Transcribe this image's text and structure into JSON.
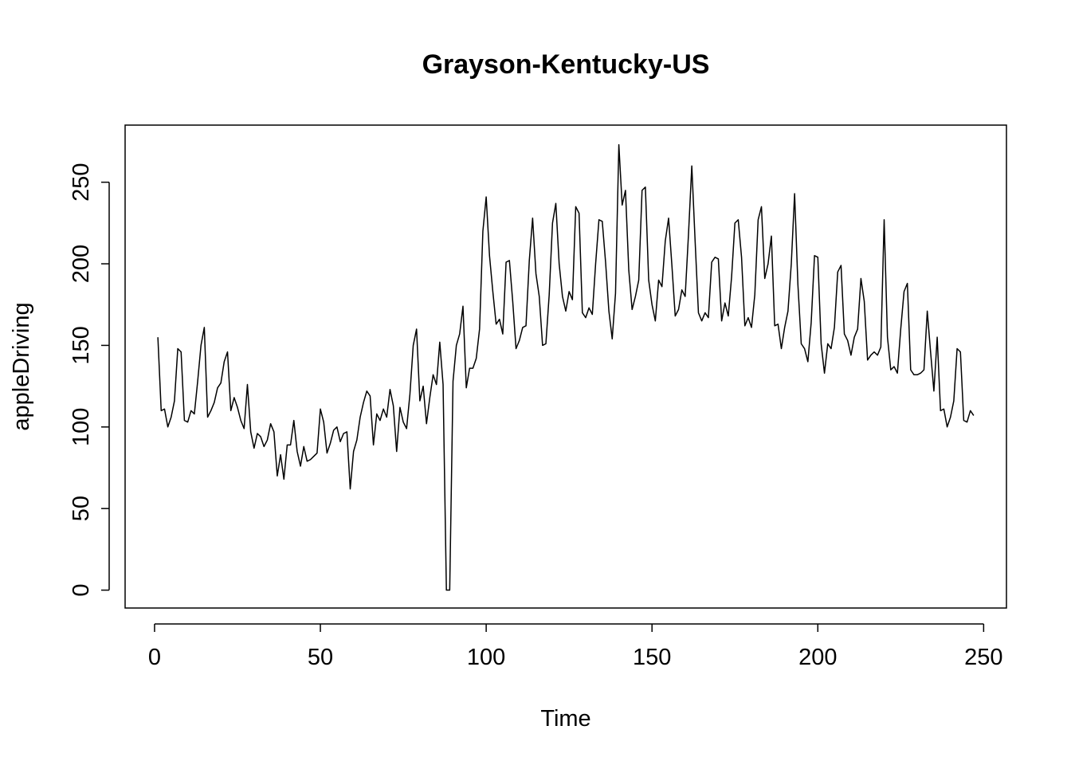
{
  "chart_data": {
    "type": "line",
    "title": "Grayson-Kentucky-US",
    "xlabel": "Time",
    "ylabel": "appleDriving",
    "xlim": [
      -8.88,
      256.88
    ],
    "ylim": [
      -10.96,
      285
    ],
    "x_ticks": [
      0,
      50,
      100,
      150,
      200,
      250
    ],
    "y_ticks": [
      0,
      50,
      100,
      150,
      200,
      250
    ],
    "x_tick_labels": [
      "0",
      "50",
      "100",
      "150",
      "200",
      "250"
    ],
    "y_tick_labels": [
      "0",
      "50",
      "100",
      "150",
      "200",
      "250"
    ],
    "grid": false,
    "legend": "none",
    "series": [
      {
        "color": "#000000",
        "x_start": 1,
        "values": [
          155,
          110,
          111,
          100,
          106,
          116,
          148,
          146,
          104,
          103,
          110,
          108,
          128,
          150,
          161,
          106,
          110,
          115,
          124,
          127,
          140,
          146,
          110,
          118,
          112,
          104,
          99,
          126,
          97,
          87,
          96,
          94,
          88,
          92,
          102,
          97,
          70,
          83,
          68,
          89,
          89,
          104,
          85,
          76,
          88,
          79,
          80,
          82,
          84,
          111,
          103,
          84,
          90,
          98,
          100,
          91,
          96,
          97,
          62,
          85,
          92,
          106,
          115,
          122,
          119,
          89,
          108,
          104,
          111,
          106,
          123,
          113,
          85,
          112,
          103,
          99,
          120,
          150,
          160,
          116,
          125,
          102,
          118,
          132,
          126,
          152,
          126,
          0,
          0,
          128,
          150,
          157,
          174,
          124,
          136,
          136,
          142,
          160,
          220,
          241,
          205,
          183,
          163,
          166,
          157,
          201,
          202,
          177,
          148,
          153,
          161,
          162,
          202,
          228,
          194,
          180,
          150,
          151,
          181,
          225,
          237,
          200,
          180,
          171,
          183,
          178,
          235,
          231,
          170,
          167,
          173,
          169,
          200,
          227,
          226,
          201,
          171,
          154,
          182,
          273,
          236,
          245,
          196,
          172,
          180,
          190,
          245,
          247,
          190,
          175,
          165,
          190,
          186,
          214,
          228,
          199,
          168,
          172,
          184,
          180,
          218,
          260,
          214,
          170,
          165,
          170,
          167,
          201,
          204,
          203,
          165,
          176,
          168,
          192,
          225,
          227,
          204,
          162,
          167,
          161,
          181,
          227,
          235,
          191,
          200,
          217,
          162,
          163,
          148,
          161,
          171,
          200,
          243,
          187,
          151,
          148,
          140,
          164,
          205,
          204,
          151,
          133,
          151,
          148,
          161,
          195,
          199,
          157,
          153,
          144,
          155,
          160,
          191,
          177,
          141,
          144,
          146,
          144,
          149,
          227,
          155,
          135,
          137,
          133,
          160,
          183,
          188,
          135,
          132,
          132,
          133,
          135,
          171,
          146,
          122,
          155,
          110,
          111,
          100,
          106,
          116,
          148,
          146,
          104,
          103,
          110,
          107
        ]
      }
    ]
  }
}
